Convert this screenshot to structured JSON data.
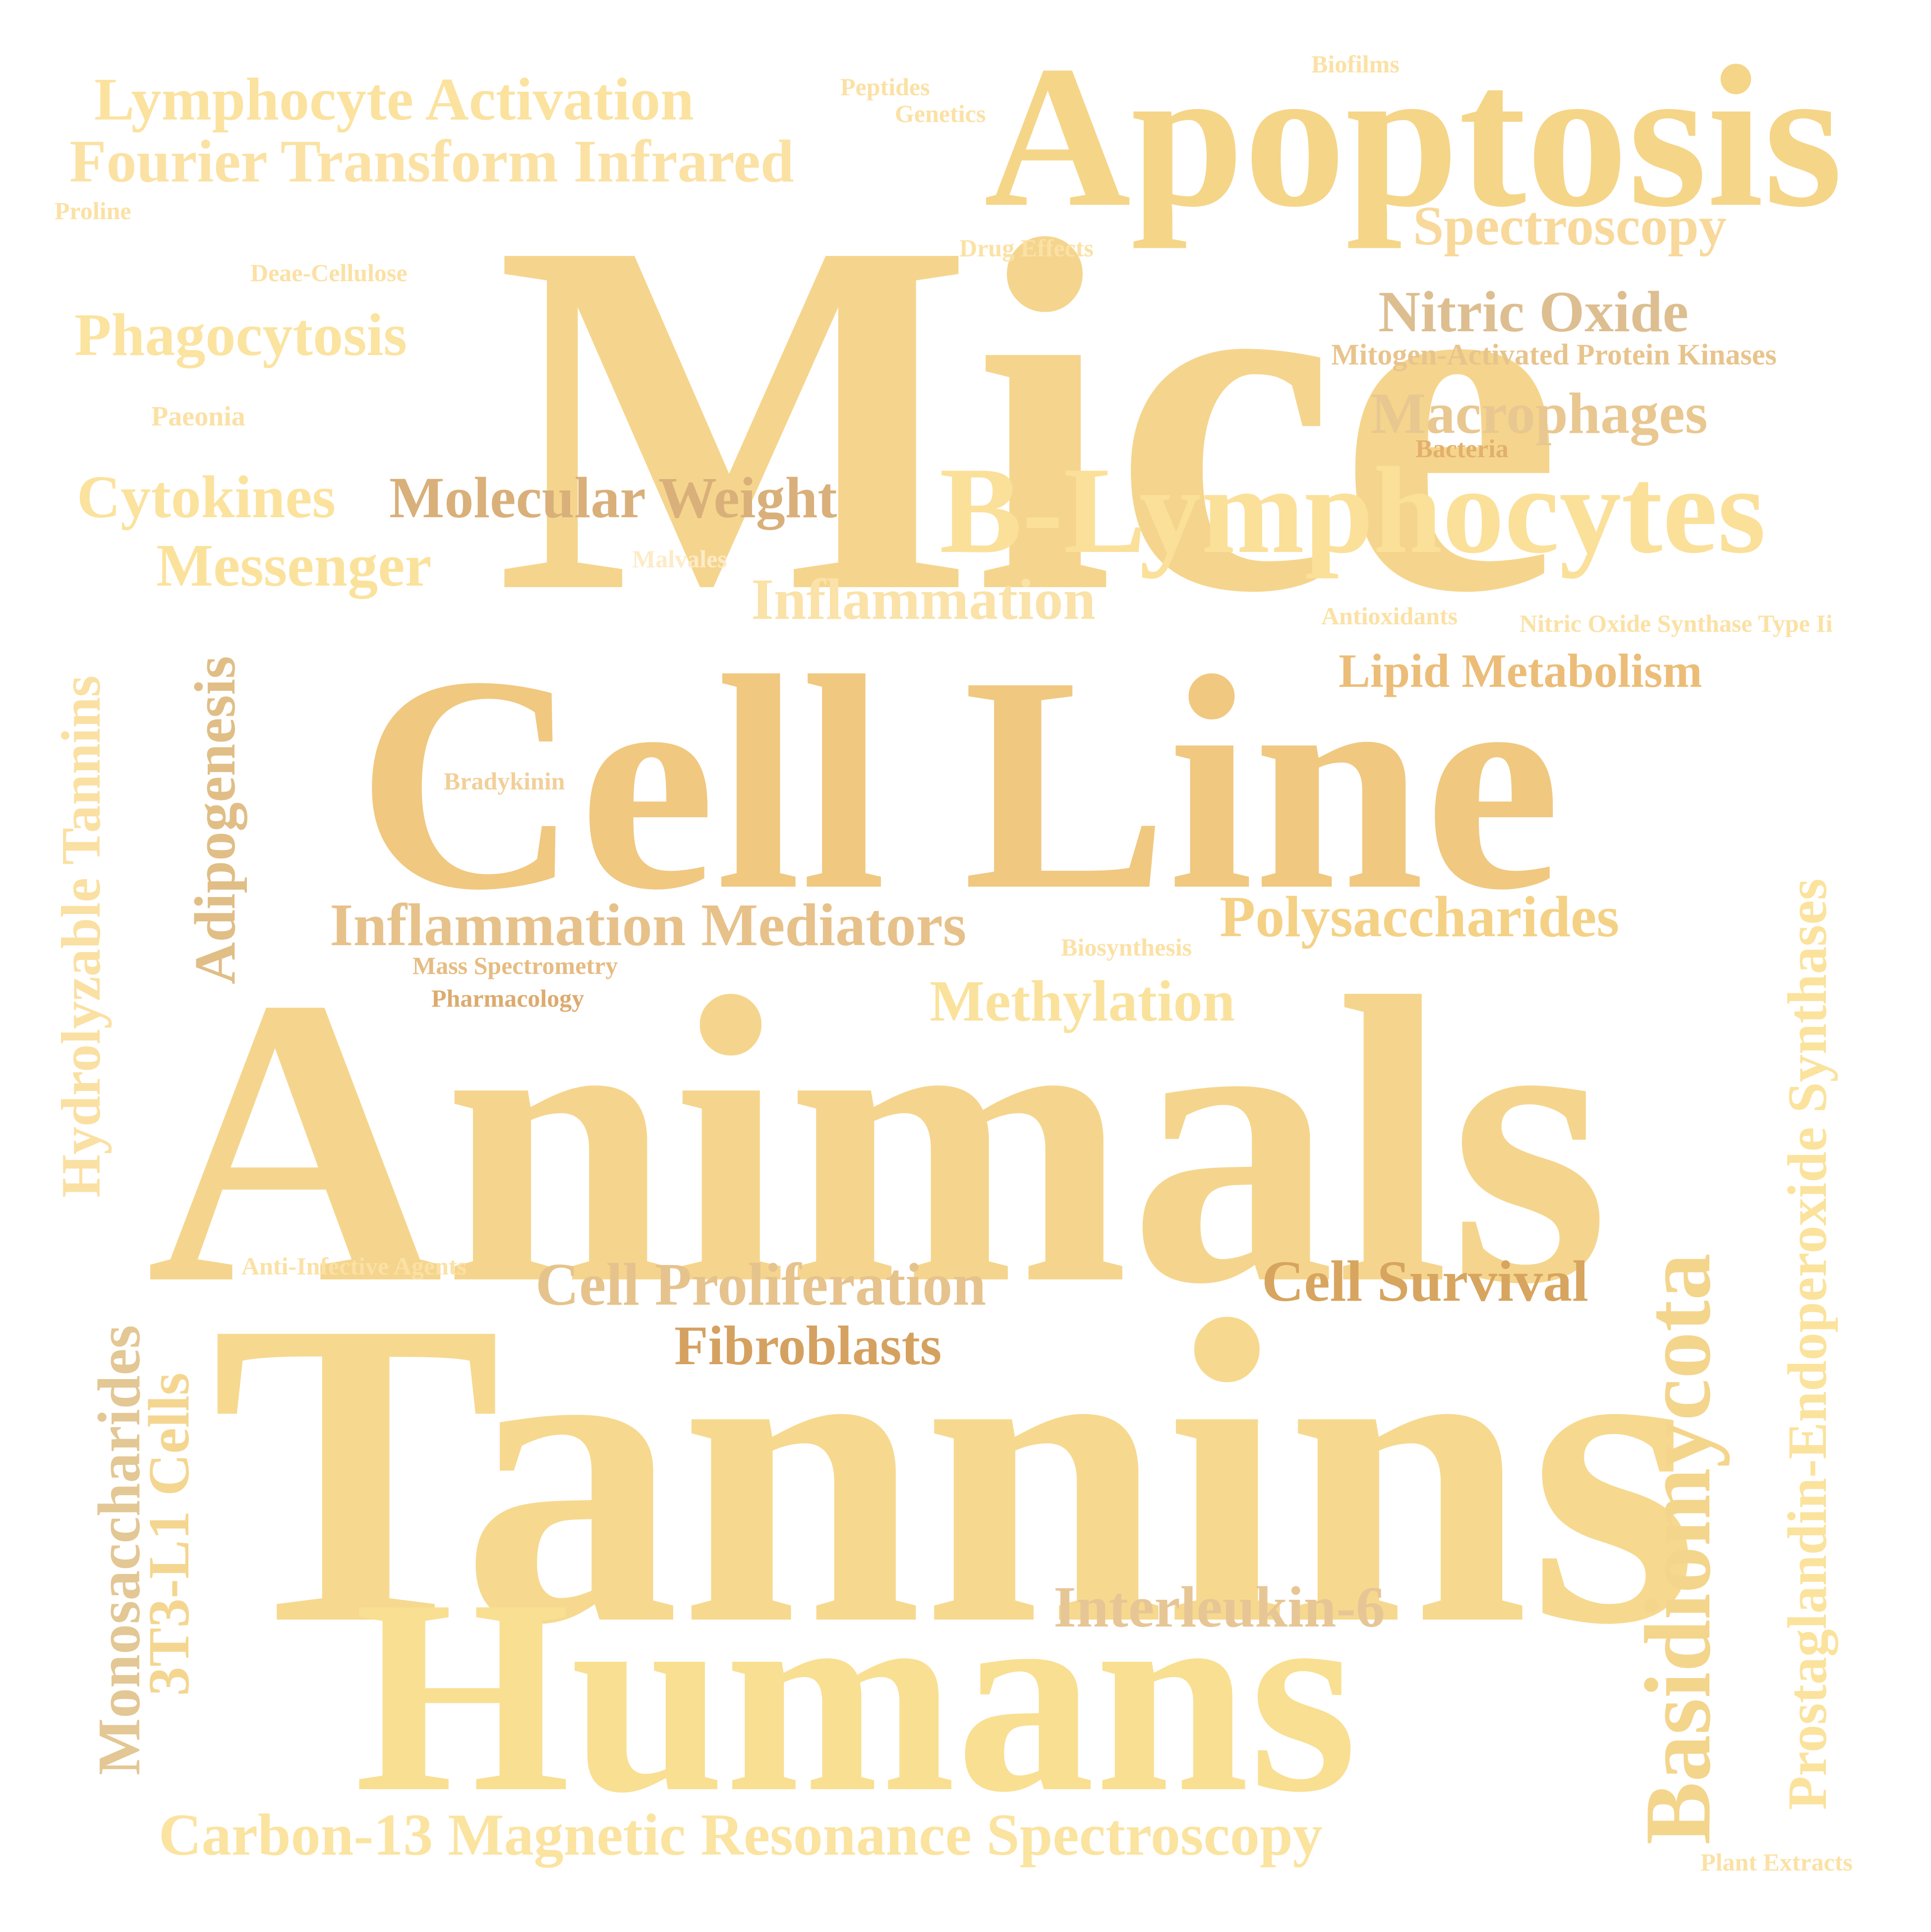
{
  "words": [
    {
      "text": "Mice",
      "color": "#f5d58d"
    },
    {
      "text": "Animals",
      "color": "#f5d58d"
    },
    {
      "text": "Tannins",
      "color": "#f6d98f"
    },
    {
      "text": "Cell Line",
      "color": "#f0c880"
    },
    {
      "text": "Humans",
      "color": "#f9df92"
    },
    {
      "text": "Apoptosis",
      "color": "#f5d588"
    },
    {
      "text": "B-Lymphocytes",
      "color": "#fbe09a"
    },
    {
      "text": "Basidiomycota",
      "color": "#f3d58c"
    },
    {
      "text": "Prostaglandin-Endoperoxide Synthases",
      "color": "#fbe39d"
    },
    {
      "text": "Hydrolyzable Tannins",
      "color": "#fae0a2"
    },
    {
      "text": "Adipogenesis",
      "color": "#e0be86"
    },
    {
      "text": "Monosaccharides",
      "color": "#e3c794"
    },
    {
      "text": "3T3-L1 Cells",
      "color": "#f4d690"
    },
    {
      "text": "Lymphocyte Activation",
      "color": "#fbe29f"
    },
    {
      "text": "Fourier Transform Infrared",
      "color": "#fbe2a4"
    },
    {
      "text": "Phagocytosis",
      "color": "#fbe3a0"
    },
    {
      "text": "Cytokines",
      "color": "#fbe29d"
    },
    {
      "text": "Messenger",
      "color": "#fbe29c"
    },
    {
      "text": "Molecular Weight",
      "color": "#d9b07a"
    },
    {
      "text": "Inflammation",
      "color": "#fae2a8"
    },
    {
      "text": "Spectroscopy",
      "color": "#f8d99b"
    },
    {
      "text": "Nitric Oxide",
      "color": "#ddbe90"
    },
    {
      "text": "Mitogen-Activated Protein Kinases",
      "color": "#e8c48d"
    },
    {
      "text": "Macrophages",
      "color": "#e9c790"
    },
    {
      "text": "Bacteria",
      "color": "#e3b06c"
    },
    {
      "text": "Lipid Metabolism",
      "color": "#ecbd78"
    },
    {
      "text": "Inflammation Mediators",
      "color": "#e7c18a"
    },
    {
      "text": "Polysaccharides",
      "color": "#f4d185"
    },
    {
      "text": "Methylation",
      "color": "#fae29c"
    },
    {
      "text": "Cell Proliferation",
      "color": "#e6c38d"
    },
    {
      "text": "Cell Survival",
      "color": "#d7a55f"
    },
    {
      "text": "Fibroblasts",
      "color": "#d5a160"
    },
    {
      "text": "Interleukin-6",
      "color": "#e7c696"
    },
    {
      "text": "Carbon-13 Magnetic Resonance Spectroscopy",
      "color": "#fbe3a0"
    },
    {
      "text": "Plant Extracts",
      "color": "#fbe1a5"
    },
    {
      "text": "Biofilms",
      "color": "#fbe1a5"
    },
    {
      "text": "Peptides",
      "color": "#fbe1a5"
    },
    {
      "text": "Genetics",
      "color": "#fbe1a5"
    },
    {
      "text": "Proline",
      "color": "#fbe1a5"
    },
    {
      "text": "Drug Effects",
      "color": "#fbe1a5"
    },
    {
      "text": "Deae-Cellulose",
      "color": "#fbe1a5"
    },
    {
      "text": "Paeonia",
      "color": "#fbe1a5"
    },
    {
      "text": "Malvales",
      "color": "#fdebc8"
    },
    {
      "text": "Antioxidants",
      "color": "#fbe1a5"
    },
    {
      "text": "Nitric Oxide Synthase Type Ii",
      "color": "#fbe1a5"
    },
    {
      "text": "Bradykinin",
      "color": "#f2cf9a"
    },
    {
      "text": "Biosynthesis",
      "color": "#fbe1a5"
    },
    {
      "text": "Mass Spectrometry",
      "color": "#e6bc82"
    },
    {
      "text": "Pharmacology",
      "color": "#dcab6e"
    },
    {
      "text": "Anti-Infective Agents",
      "color": "#fbe1a5"
    }
  ]
}
